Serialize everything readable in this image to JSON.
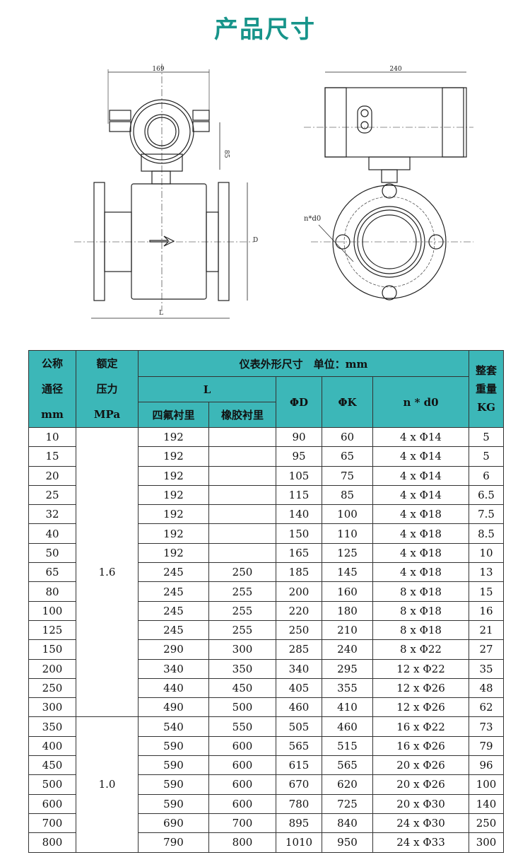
{
  "title": "产品尺寸",
  "drawing": {
    "dim_width_front": "169",
    "dim_width_side": "240",
    "dim_height": "85",
    "dim_D": "D",
    "dim_L": "L",
    "label_holes": "n*d0"
  },
  "table": {
    "header": {
      "dn": [
        "公称",
        "通径",
        "mm"
      ],
      "pn": [
        "额定",
        "压力",
        "MPa"
      ],
      "dims": "仪表外形尺寸　单位：mm",
      "L": "L",
      "ptfe": "四氟衬里",
      "rubber": "橡胶衬里",
      "D": "ΦD",
      "K": "ΦK",
      "nd": "n * d0",
      "weight": [
        "整套",
        "重量",
        "KG"
      ]
    },
    "pressure_groups": [
      {
        "value": "1.6",
        "rows": 15
      },
      {
        "value": "1.0",
        "rows": 7
      }
    ],
    "rows": [
      [
        "10",
        "192",
        "",
        "90",
        "60",
        "4 x Φ14",
        "5"
      ],
      [
        "15",
        "192",
        "",
        "95",
        "65",
        "4 x Φ14",
        "5"
      ],
      [
        "20",
        "192",
        "",
        "105",
        "75",
        "4 x Φ14",
        "6"
      ],
      [
        "25",
        "192",
        "",
        "115",
        "85",
        "4 x Φ14",
        "6.5"
      ],
      [
        "32",
        "192",
        "",
        "140",
        "100",
        "4 x Φ18",
        "7.5"
      ],
      [
        "40",
        "192",
        "",
        "150",
        "110",
        "4 x Φ18",
        "8.5"
      ],
      [
        "50",
        "192",
        "",
        "165",
        "125",
        "4 x Φ18",
        "10"
      ],
      [
        "65",
        "245",
        "250",
        "185",
        "145",
        "4 x Φ18",
        "13"
      ],
      [
        "80",
        "245",
        "255",
        "200",
        "160",
        "8 x Φ18",
        "15"
      ],
      [
        "100",
        "245",
        "255",
        "220",
        "180",
        "8 x Φ18",
        "16"
      ],
      [
        "125",
        "245",
        "255",
        "250",
        "210",
        "8 x Φ18",
        "21"
      ],
      [
        "150",
        "290",
        "300",
        "285",
        "240",
        "8 x Φ22",
        "27"
      ],
      [
        "200",
        "340",
        "350",
        "340",
        "295",
        "12 x Φ22",
        "35"
      ],
      [
        "250",
        "440",
        "450",
        "405",
        "355",
        "12 x Φ26",
        "48"
      ],
      [
        "300",
        "490",
        "500",
        "460",
        "410",
        "12 x Φ26",
        "62"
      ],
      [
        "350",
        "540",
        "550",
        "505",
        "460",
        "16 x Φ22",
        "73"
      ],
      [
        "400",
        "590",
        "600",
        "565",
        "515",
        "16 x Φ26",
        "79"
      ],
      [
        "450",
        "590",
        "600",
        "615",
        "565",
        "20 x Φ26",
        "96"
      ],
      [
        "500",
        "590",
        "600",
        "670",
        "620",
        "20 x Φ26",
        "100"
      ],
      [
        "600",
        "590",
        "600",
        "780",
        "725",
        "20 x Φ30",
        "140"
      ],
      [
        "700",
        "690",
        "700",
        "895",
        "840",
        "24 x Φ30",
        "250"
      ],
      [
        "800",
        "790",
        "800",
        "1010",
        "950",
        "24 x Φ33",
        "300"
      ]
    ]
  },
  "colors": {
    "title": "#17948a",
    "header_bg": "#3cb7b8"
  }
}
